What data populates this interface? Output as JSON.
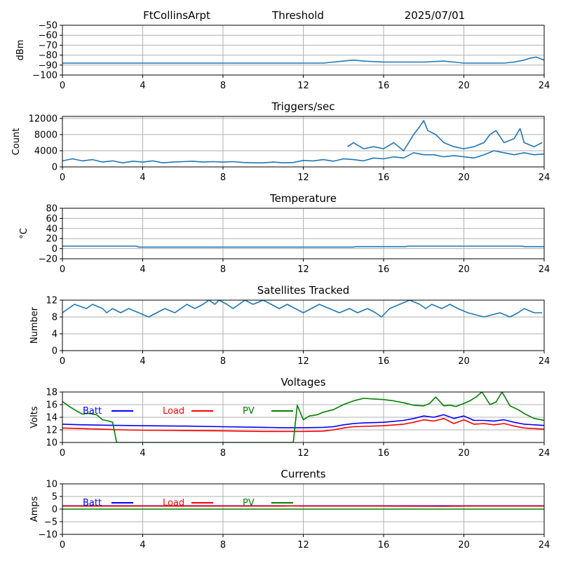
{
  "header": {
    "station": "FtCollinsArpt",
    "mode": "Threshold",
    "date": "2025/07/01"
  },
  "colors": {
    "series": "#1f77b4",
    "batt": "#0000ff",
    "load": "#ff0000",
    "pv": "#008000",
    "grid": "#b0b0b0"
  },
  "chart_data": [
    {
      "type": "line",
      "title": "",
      "ylabel": "dBm",
      "xlim": [
        0,
        24
      ],
      "xticks": [
        0,
        4,
        8,
        12,
        16,
        20,
        24
      ],
      "ylim": [
        -100,
        -50
      ],
      "yticks": [
        -100,
        -90,
        -80,
        -70,
        -60,
        -50
      ],
      "grid": true,
      "series": [
        {
          "x": [
            0,
            2,
            4,
            6,
            8,
            10,
            12,
            13,
            13.5,
            14,
            14.5,
            15,
            16,
            17,
            18,
            19,
            19.5,
            20,
            21,
            22,
            22.5,
            23,
            23.3,
            23.6,
            24
          ],
          "y": [
            -88,
            -88,
            -88,
            -88,
            -88,
            -88,
            -88,
            -88,
            -87,
            -86,
            -85,
            -86,
            -87,
            -87,
            -87,
            -86,
            -87,
            -88,
            -88,
            -88,
            -87,
            -85,
            -83,
            -82,
            -85
          ]
        }
      ]
    },
    {
      "type": "line",
      "title": "Triggers/sec",
      "ylabel": "Count",
      "xlim": [
        0,
        24
      ],
      "xticks": [
        0,
        4,
        8,
        12,
        16,
        20,
        24
      ],
      "ylim": [
        0,
        12500
      ],
      "yticks": [
        0,
        4000,
        8000,
        12000
      ],
      "grid": true,
      "series": [
        {
          "x": [
            0,
            0.5,
            1,
            1.5,
            2,
            2.5,
            3,
            3.5,
            4,
            4.5,
            5,
            5.5,
            6,
            6.5,
            7,
            7.5,
            8,
            8.5,
            9,
            9.5,
            10,
            10.5,
            11,
            11.5,
            12,
            12.5,
            13,
            13.5,
            14,
            14.5,
            15,
            15.5,
            16,
            16.5,
            17,
            17.5,
            18,
            18.5,
            19,
            19.5,
            20,
            20.5,
            21,
            21.5,
            22,
            22.5,
            23,
            23.5,
            24
          ],
          "y": [
            1500,
            2000,
            1500,
            1800,
            1200,
            1500,
            1000,
            1400,
            1200,
            1500,
            1000,
            1200,
            1300,
            1400,
            1200,
            1300,
            1200,
            1300,
            1100,
            1000,
            1000,
            1200,
            1000,
            1100,
            1600,
            1500,
            1800,
            1400,
            2000,
            1800,
            1500,
            2200,
            2000,
            2500,
            2200,
            3500,
            3000,
            3000,
            2500,
            2800,
            2500,
            2200,
            3000,
            4000,
            3500,
            3000,
            3500,
            3000,
            3200
          ]
        },
        {
          "x": [
            14.2,
            14.5,
            15,
            15.5,
            16,
            16.5,
            17,
            17.5,
            17.8,
            18,
            18.2,
            18.6,
            19,
            19.5,
            20,
            20.5,
            21,
            21.3,
            21.6,
            22,
            22.5,
            22.8,
            23,
            23.5,
            23.9
          ],
          "y": [
            5000,
            6000,
            4500,
            5000,
            4500,
            6000,
            4000,
            8000,
            10000,
            11500,
            9000,
            8000,
            6000,
            5000,
            4500,
            5000,
            6000,
            8000,
            9000,
            6000,
            7000,
            9500,
            6000,
            5000,
            6000
          ]
        }
      ]
    },
    {
      "type": "line",
      "title": "Temperature",
      "ylabel": "°C",
      "xlim": [
        0,
        24
      ],
      "xticks": [
        0,
        4,
        8,
        12,
        16,
        20,
        24
      ],
      "ylim": [
        -20,
        80
      ],
      "yticks": [
        -20,
        0,
        20,
        40,
        60,
        80
      ],
      "grid": true,
      "series": [
        {
          "x": [
            0,
            3.7,
            3.8,
            14.5,
            14.6,
            17.1,
            17.2,
            22.9,
            23,
            24
          ],
          "y": [
            5,
            5,
            3,
            3,
            4,
            4,
            5,
            5,
            4,
            4
          ]
        }
      ]
    },
    {
      "type": "line",
      "title": "Satellites Tracked",
      "ylabel": "Number",
      "xlim": [
        0,
        24
      ],
      "xticks": [
        0,
        4,
        8,
        12,
        16,
        20,
        24
      ],
      "ylim": [
        0,
        12
      ],
      "yticks": [
        0,
        4,
        8,
        12
      ],
      "grid": true,
      "series": [
        {
          "x": [
            0,
            0.3,
            0.6,
            1.2,
            1.5,
            2,
            2.2,
            2.5,
            2.9,
            3.3,
            3.8,
            4.3,
            4.7,
            5.1,
            5.6,
            5.9,
            6.2,
            6.6,
            7,
            7.3,
            7.6,
            7.8,
            8.2,
            8.5,
            8.8,
            9.1,
            9.5,
            10,
            10.4,
            10.8,
            11.2,
            11.6,
            12,
            12.4,
            12.8,
            13.3,
            13.8,
            14.3,
            14.7,
            15.2,
            15.6,
            15.9,
            16.3,
            16.8,
            17.3,
            17.8,
            18.1,
            18.4,
            18.9,
            19.3,
            19.7,
            20.2,
            21,
            21.8,
            22.3,
            22.7,
            23,
            23.5,
            23.9
          ],
          "y": [
            9,
            10,
            11,
            10,
            11,
            10,
            9,
            10,
            9,
            10,
            9,
            8,
            9,
            10,
            9,
            10,
            11,
            10,
            11,
            12,
            11,
            12,
            11,
            10,
            11,
            12,
            11,
            12,
            11,
            10,
            11,
            10,
            9,
            10,
            11,
            10,
            9,
            10,
            9,
            10,
            9,
            8,
            10,
            11,
            12,
            11,
            10,
            11,
            10,
            11,
            10,
            9,
            8,
            9,
            8,
            9,
            10,
            9,
            9
          ]
        }
      ]
    },
    {
      "type": "line",
      "title": "Voltages",
      "ylabel": "Volts",
      "xlim": [
        0,
        24
      ],
      "xticks": [
        0,
        4,
        8,
        12,
        16,
        20,
        24
      ],
      "ylim": [
        10,
        18
      ],
      "yticks": [
        10,
        12,
        14,
        16,
        18
      ],
      "grid": true,
      "legend": "upper-left",
      "series": [
        {
          "name": "Batt",
          "color": "#0000ff",
          "x": [
            0,
            1,
            2,
            3,
            4,
            6,
            8,
            10,
            11,
            12,
            13,
            13.5,
            14,
            14.5,
            15,
            16,
            17,
            17.5,
            18,
            18.5,
            19,
            19.5,
            20,
            20.5,
            21,
            21.5,
            22,
            22.5,
            23,
            24
          ],
          "y": [
            12.9,
            12.8,
            12.75,
            12.7,
            12.65,
            12.6,
            12.5,
            12.4,
            12.35,
            12.35,
            12.4,
            12.5,
            12.8,
            13.0,
            13.1,
            13.2,
            13.5,
            13.8,
            14.2,
            14.0,
            14.4,
            13.8,
            14.2,
            13.5,
            13.5,
            13.4,
            13.6,
            13.2,
            12.9,
            12.7
          ]
        },
        {
          "name": "Load",
          "color": "#ff0000",
          "x": [
            0,
            1,
            2,
            3,
            4,
            6,
            8,
            10,
            11,
            12,
            13,
            13.5,
            14,
            14.5,
            15,
            16,
            17,
            17.5,
            18,
            18.5,
            19,
            19.5,
            20,
            20.5,
            21,
            21.5,
            22,
            22.5,
            23,
            24
          ],
          "y": [
            12.3,
            12.2,
            12.1,
            12.0,
            11.95,
            11.9,
            11.85,
            11.75,
            11.75,
            11.75,
            11.8,
            12.0,
            12.3,
            12.5,
            12.55,
            12.65,
            12.9,
            13.2,
            13.6,
            13.4,
            13.8,
            13.0,
            13.6,
            12.9,
            13.0,
            12.8,
            13.0,
            12.6,
            12.3,
            12.1
          ]
        },
        {
          "name": "PV",
          "color": "#008000",
          "x": [
            0,
            0.3,
            0.7,
            1,
            1.3,
            1.7,
            2,
            2.3,
            2.5,
            2.7,
            11.5,
            11.7,
            12,
            12.3,
            12.7,
            13,
            13.5,
            14,
            14.5,
            15,
            15.5,
            16,
            16.5,
            17,
            17.5,
            18,
            18.3,
            18.6,
            19,
            19.3,
            19.6,
            20,
            20.3,
            20.6,
            20.9,
            21.3,
            21.6,
            21.9,
            22.3,
            22.7,
            23,
            23.5,
            24
          ],
          "y": [
            16.5,
            15.8,
            15.0,
            14.5,
            14.6,
            14.4,
            13.6,
            13.4,
            13.2,
            10.0,
            10.0,
            15.9,
            13.6,
            14.2,
            14.4,
            14.8,
            15.2,
            16.0,
            16.6,
            17.0,
            16.9,
            16.8,
            16.6,
            16.3,
            15.9,
            15.8,
            16.2,
            17.2,
            15.8,
            15.9,
            15.7,
            16.2,
            16.6,
            17.2,
            18.0,
            16.0,
            16.4,
            18.0,
            15.8,
            15.2,
            14.6,
            13.8,
            13.5
          ]
        }
      ]
    },
    {
      "type": "line",
      "title": "Currents",
      "ylabel": "Amps",
      "xlim": [
        0,
        24
      ],
      "xticks": [
        0,
        4,
        8,
        12,
        16,
        20,
        24
      ],
      "ylim": [
        -10,
        10
      ],
      "yticks": [
        -10,
        -5,
        0,
        5,
        10
      ],
      "grid": true,
      "legend": "upper-left",
      "series": [
        {
          "name": "Batt",
          "color": "#0000ff",
          "x": [
            0,
            4,
            8,
            12,
            16,
            20,
            24
          ],
          "y": [
            1.3,
            1.3,
            1.3,
            1.3,
            1.3,
            1.3,
            1.3
          ]
        },
        {
          "name": "Load",
          "color": "#ff0000",
          "x": [
            0,
            4,
            8,
            11,
            11.3,
            12,
            16,
            19,
            20,
            22,
            24
          ],
          "y": [
            1.2,
            1.2,
            1.2,
            1.2,
            1.3,
            1.2,
            1.2,
            1.1,
            1.2,
            1.2,
            1.2
          ]
        },
        {
          "name": "PV",
          "color": "#008000",
          "x": [
            0,
            4,
            8,
            12,
            16,
            20,
            24
          ],
          "y": [
            0,
            0,
            0,
            0,
            0,
            0,
            0
          ]
        }
      ]
    }
  ]
}
